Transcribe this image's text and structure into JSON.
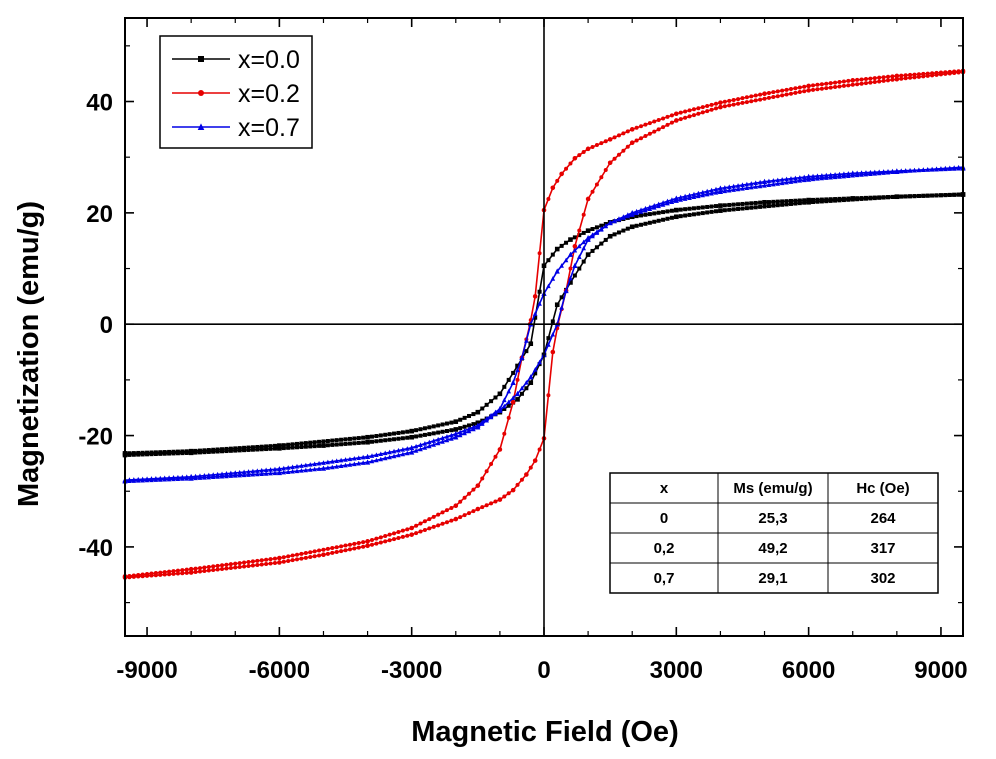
{
  "chart_data": {
    "type": "line",
    "title": "",
    "xlabel": "Magnetic Field (Oe)",
    "ylabel": "Magnetization (emu/g)",
    "xlim": [
      -9500,
      9500
    ],
    "ylim": [
      -56,
      55
    ],
    "xticks": [
      -9000,
      -6000,
      -3000,
      0,
      3000,
      6000,
      9000
    ],
    "xtick_labels": [
      "-9000",
      "-6000",
      "-3000",
      "0",
      "3000",
      "6000",
      "9000"
    ],
    "yticks": [
      -40,
      -20,
      0,
      20,
      40
    ],
    "ytick_labels": [
      "-40",
      "-20",
      "0",
      "20",
      "40"
    ],
    "grid": false,
    "legend_position": "top-left",
    "series": [
      {
        "name": "x=0.0",
        "color": "#000000",
        "marker": "square",
        "Ms": 25.3,
        "Hc": 264,
        "upper_branch": {
          "x": [
            -9500,
            -8000,
            -6000,
            -4000,
            -3000,
            -2000,
            -1500,
            -1000,
            -600,
            -300,
            0,
            300,
            600,
            1000,
            1500,
            2000,
            3000,
            4000,
            5000,
            6000,
            7000,
            8000,
            9500
          ],
          "y": [
            -23.2,
            -22.8,
            -21.8,
            -20.3,
            -19.2,
            -17.5,
            -15.8,
            -12.5,
            -7.5,
            -3.5,
            10.5,
            13.5,
            15.2,
            16.8,
            18.3,
            19.3,
            20.5,
            21.3,
            21.9,
            22.3,
            22.6,
            22.9,
            23.3
          ]
        },
        "lower_branch": {
          "x": [
            -9500,
            -8000,
            -6000,
            -5000,
            -4000,
            -3000,
            -2000,
            -1500,
            -1000,
            -600,
            -300,
            0,
            300,
            600,
            1000,
            1500,
            2000,
            3000,
            4000,
            6000,
            8000,
            9500
          ],
          "y": [
            -23.5,
            -23.1,
            -22.3,
            -21.8,
            -21.2,
            -20.3,
            -18.9,
            -17.7,
            -15.8,
            -13.5,
            -10.5,
            -5.5,
            3.5,
            7.5,
            12.5,
            15.8,
            17.5,
            19.3,
            20.4,
            21.9,
            22.9,
            23.3
          ]
        }
      },
      {
        "name": "x=0.2",
        "color": "#e60000",
        "marker": "circle",
        "Ms": 49.2,
        "Hc": 317,
        "upper_branch": {
          "x": [
            -9500,
            -8000,
            -6000,
            -4000,
            -3000,
            -2000,
            -1500,
            -1000,
            -700,
            -500,
            -317,
            -200,
            0,
            200,
            400,
            700,
            1000,
            1500,
            2000,
            3000,
            4000,
            5000,
            6000,
            7000,
            8000,
            9500
          ],
          "y": [
            -45.3,
            -44.0,
            -42.0,
            -39.0,
            -36.6,
            -32.6,
            -29.0,
            -22.5,
            -14.0,
            -6.0,
            0.0,
            5.0,
            20.5,
            24.5,
            27.0,
            29.8,
            31.5,
            33.2,
            35.0,
            37.8,
            39.8,
            41.4,
            42.8,
            43.8,
            44.6,
            45.5
          ]
        },
        "lower_branch": {
          "x": [
            -9500,
            -8000,
            -6000,
            -5000,
            -4000,
            -3000,
            -2000,
            -1500,
            -1000,
            -700,
            -400,
            -200,
            0,
            200,
            317,
            500,
            700,
            1000,
            1500,
            2000,
            3000,
            4000,
            6000,
            8000,
            9500
          ],
          "y": [
            -45.5,
            -44.6,
            -42.8,
            -41.4,
            -39.8,
            -37.8,
            -35.0,
            -33.2,
            -31.5,
            -29.8,
            -27.0,
            -24.5,
            -20.5,
            -5.0,
            0.0,
            6.0,
            14.0,
            22.5,
            29.0,
            32.6,
            36.6,
            39.0,
            42.0,
            44.0,
            45.3
          ]
        }
      },
      {
        "name": "x=0.7",
        "color": "#0000e6",
        "marker": "triangle",
        "Ms": 29.1,
        "Hc": 302,
        "upper_branch": {
          "x": [
            -9500,
            -8000,
            -6000,
            -4000,
            -3000,
            -2000,
            -1500,
            -1000,
            -700,
            -500,
            -302,
            0,
            300,
            600,
            1000,
            1500,
            2000,
            3000,
            4000,
            5000,
            6000,
            7000,
            8000,
            9500
          ],
          "y": [
            -28.0,
            -27.4,
            -26.0,
            -23.8,
            -22.2,
            -19.7,
            -18.2,
            -15.2,
            -10.5,
            -6.0,
            0.0,
            5.5,
            9.5,
            12.5,
            15.5,
            18.2,
            20.0,
            22.6,
            24.4,
            25.6,
            26.5,
            27.1,
            27.5,
            28.0
          ]
        },
        "lower_branch": {
          "x": [
            -9500,
            -8000,
            -6000,
            -5000,
            -4000,
            -3000,
            -2000,
            -1500,
            -1000,
            -600,
            -300,
            0,
            302,
            500,
            700,
            1000,
            1500,
            2000,
            3000,
            4000,
            6000,
            8000,
            9500
          ],
          "y": [
            -28.2,
            -27.7,
            -26.7,
            -25.9,
            -24.8,
            -23.0,
            -20.3,
            -18.5,
            -15.5,
            -12.5,
            -9.5,
            -5.5,
            0.0,
            6.0,
            10.5,
            15.2,
            18.2,
            19.7,
            22.2,
            23.8,
            26.0,
            27.4,
            28.2
          ]
        }
      }
    ],
    "inset_table": {
      "headers": [
        "x",
        "Ms (emu/g)",
        "Hc (Oe)"
      ],
      "rows": [
        [
          "0",
          "25,3",
          "264"
        ],
        [
          "0,2",
          "49,2",
          "317"
        ],
        [
          "0,7",
          "29,1",
          "302"
        ]
      ]
    }
  }
}
